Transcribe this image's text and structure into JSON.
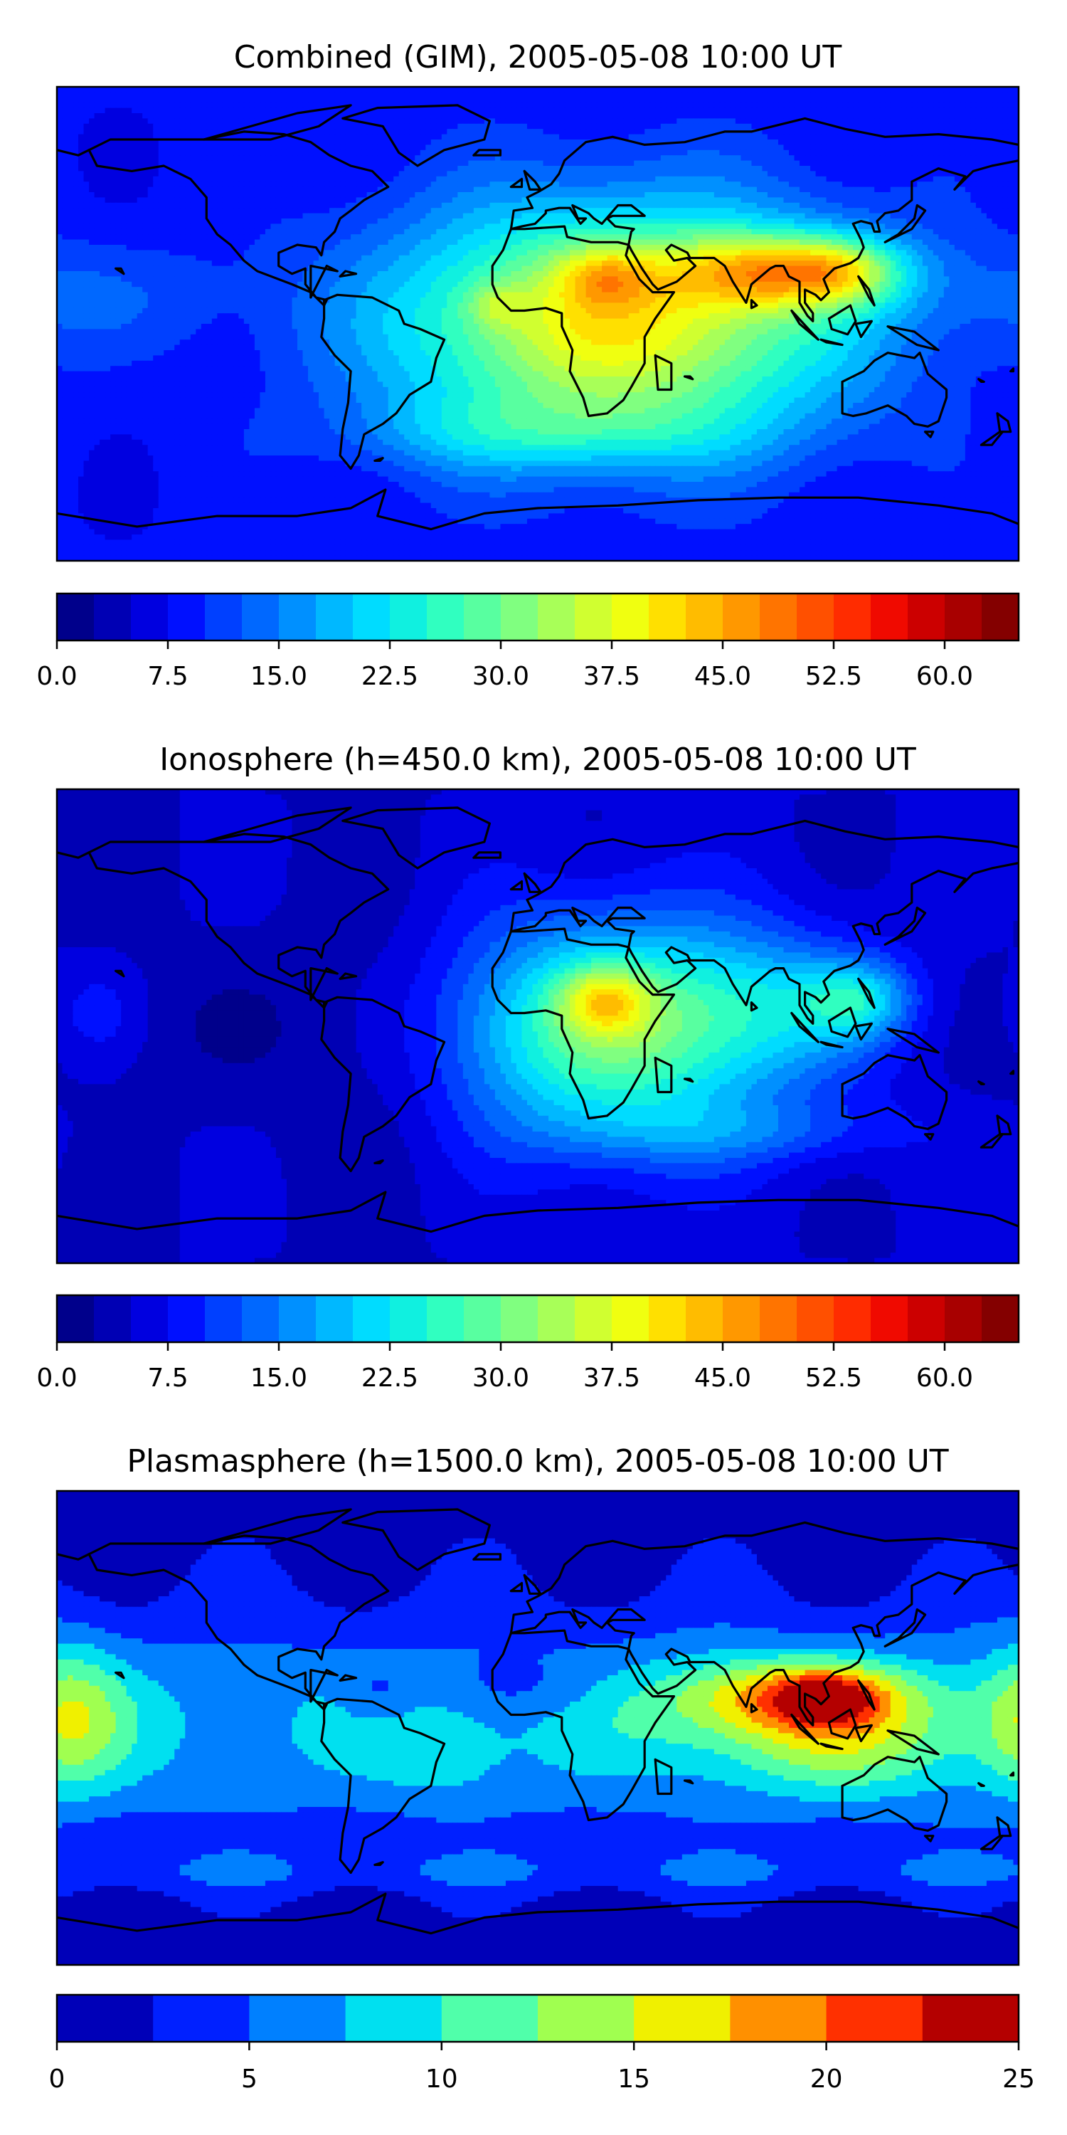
{
  "chart_data": [
    {
      "type": "heatmap",
      "title": "Combined (GIM), 2005-05-08 10:00 UT",
      "field": {
        "base": 8,
        "background_waves": [
          {
            "lon": -170,
            "lat": 10,
            "sx": 40,
            "sy": 15,
            "amp": 4
          },
          {
            "lon": -30,
            "lat": -40,
            "sx": 30,
            "sy": 10,
            "amp": 2
          }
        ],
        "blobs": [
          {
            "lon": 30,
            "lat": 0,
            "sx": 60,
            "sy": 32,
            "amp": 32
          },
          {
            "lon": 90,
            "lat": 20,
            "sx": 28,
            "sy": 10,
            "amp": 22
          },
          {
            "lon": 115,
            "lat": 20,
            "sx": 15,
            "sy": 9,
            "amp": 10
          },
          {
            "lon": 25,
            "lat": 18,
            "sx": 12,
            "sy": 8,
            "amp": 10
          },
          {
            "lon": -15,
            "lat": 7,
            "sx": 8,
            "sy": 6,
            "amp": 6
          },
          {
            "lon": 10,
            "lat": -42,
            "sx": 50,
            "sy": 10,
            "amp": 6
          }
        ]
      },
      "colorbar": {
        "levels": [
          0,
          2.5,
          5,
          7.5,
          10,
          12.5,
          15,
          17.5,
          20,
          22.5,
          25,
          27.5,
          30,
          32.5,
          35,
          37.5,
          40,
          42.5,
          45,
          47.5,
          50,
          52.5,
          55,
          57.5,
          60,
          62.5,
          65
        ],
        "ticks": [
          0,
          7.5,
          15,
          22.5,
          30,
          37.5,
          45,
          52.5,
          60
        ],
        "tick_labels": [
          "0.0",
          "7.5",
          "15.0",
          "22.5",
          "30.0",
          "37.5",
          "45.0",
          "52.5",
          "60.0"
        ],
        "colors": [
          "#00008b",
          "#0000b4",
          "#0000e0",
          "#0010ff",
          "#0040ff",
          "#0068ff",
          "#0090ff",
          "#00b8ff",
          "#00dcff",
          "#10f0e0",
          "#30ffc0",
          "#58ffa0",
          "#80ff80",
          "#a8ff58",
          "#d0ff30",
          "#f0ff10",
          "#ffe000",
          "#ffbc00",
          "#ff9800",
          "#ff7400",
          "#ff5000",
          "#ff2c00",
          "#f00a00",
          "#cc0000",
          "#a80000",
          "#840000"
        ]
      }
    },
    {
      "type": "heatmap",
      "title": "Ionosphere  (h=450.0 km), 2005-05-08 10:00 UT",
      "field": {
        "base": 5,
        "background_waves": [
          {
            "lon": -130,
            "lat": 0,
            "sx": 40,
            "sy": 20,
            "amp": -2
          },
          {
            "lon": -60,
            "lat": -5,
            "sx": 25,
            "sy": 40,
            "amp": -3
          }
        ],
        "blobs": [
          {
            "lon": 30,
            "lat": -2,
            "sx": 45,
            "sy": 30,
            "amp": 25
          },
          {
            "lon": 25,
            "lat": 10,
            "sx": 12,
            "sy": 9,
            "amp": 14
          },
          {
            "lon": 120,
            "lat": 10,
            "sx": 14,
            "sy": 10,
            "amp": 12
          },
          {
            "lon": 90,
            "lat": 8,
            "sx": 30,
            "sy": 18,
            "amp": 8
          },
          {
            "lon": -165,
            "lat": 5,
            "sx": 12,
            "sy": 12,
            "amp": 4
          },
          {
            "lon": 80,
            "lat": -40,
            "sx": 45,
            "sy": 8,
            "amp": 5
          }
        ]
      },
      "colorbar": {
        "levels": [
          0,
          2.5,
          5,
          7.5,
          10,
          12.5,
          15,
          17.5,
          20,
          22.5,
          25,
          27.5,
          30,
          32.5,
          35,
          37.5,
          40,
          42.5,
          45,
          47.5,
          50,
          52.5,
          55,
          57.5,
          60,
          62.5,
          65
        ],
        "ticks": [
          0,
          7.5,
          15,
          22.5,
          30,
          37.5,
          45,
          52.5,
          60
        ],
        "tick_labels": [
          "0.0",
          "7.5",
          "15.0",
          "22.5",
          "30.0",
          "37.5",
          "45.0",
          "52.5",
          "60.0"
        ],
        "colors": [
          "#00008b",
          "#0000b4",
          "#0000e0",
          "#0010ff",
          "#0040ff",
          "#0068ff",
          "#0090ff",
          "#00b8ff",
          "#00dcff",
          "#10f0e0",
          "#30ffc0",
          "#58ffa0",
          "#80ff80",
          "#a8ff58",
          "#d0ff30",
          "#f0ff10",
          "#ffe000",
          "#ffbc00",
          "#ff9800",
          "#ff7400",
          "#ff5000",
          "#ff2c00",
          "#f00a00",
          "#cc0000",
          "#a80000",
          "#840000"
        ]
      }
    },
    {
      "type": "heatmap",
      "title": "Plasmasphere (h=1500.0 km), 2005-05-08 10:00 UT",
      "field": {
        "base": 1.2,
        "background_waves": [
          {
            "lon": 0,
            "lat": 0,
            "sx": 999,
            "sy": 30,
            "amp": 6.5
          },
          {
            "lon": 0,
            "lat": -55,
            "sx": 999,
            "sy": 6,
            "amp": 2.5
          }
        ],
        "blobs": [
          {
            "lon": 100,
            "lat": 12,
            "sx": 30,
            "sy": 10,
            "amp": 11
          },
          {
            "lon": 108,
            "lat": 12,
            "sx": 12,
            "sy": 6,
            "amp": 7
          },
          {
            "lon": 115,
            "lat": -5,
            "sx": 35,
            "sy": 15,
            "amp": 6
          },
          {
            "lon": -175,
            "lat": 5,
            "sx": 14,
            "sy": 20,
            "amp": 7
          },
          {
            "lon": -35,
            "lat": -10,
            "sx": 15,
            "sy": 12,
            "amp": 3
          },
          {
            "lon": 60,
            "lat": 10,
            "sx": 25,
            "sy": 15,
            "amp": 2
          },
          {
            "lon": -60,
            "lat": 12,
            "sx": 10,
            "sy": 8,
            "amp": -3
          },
          {
            "lon": 0,
            "lat": 15,
            "sx": 20,
            "sy": 8,
            "amp": -2
          }
        ]
      },
      "colorbar": {
        "levels": [
          0,
          2.5,
          5,
          7.5,
          10,
          12.5,
          15,
          17.5,
          20,
          22.5,
          25
        ],
        "ticks": [
          0,
          5,
          10,
          15,
          20,
          25
        ],
        "tick_labels": [
          "0",
          "5",
          "10",
          "15",
          "20",
          "25"
        ],
        "colors": [
          "#0000b8",
          "#0020ff",
          "#0080ff",
          "#00e0f0",
          "#50ffaa",
          "#a0ff50",
          "#f0f000",
          "#ff9000",
          "#ff3000",
          "#b40000"
        ]
      }
    }
  ]
}
